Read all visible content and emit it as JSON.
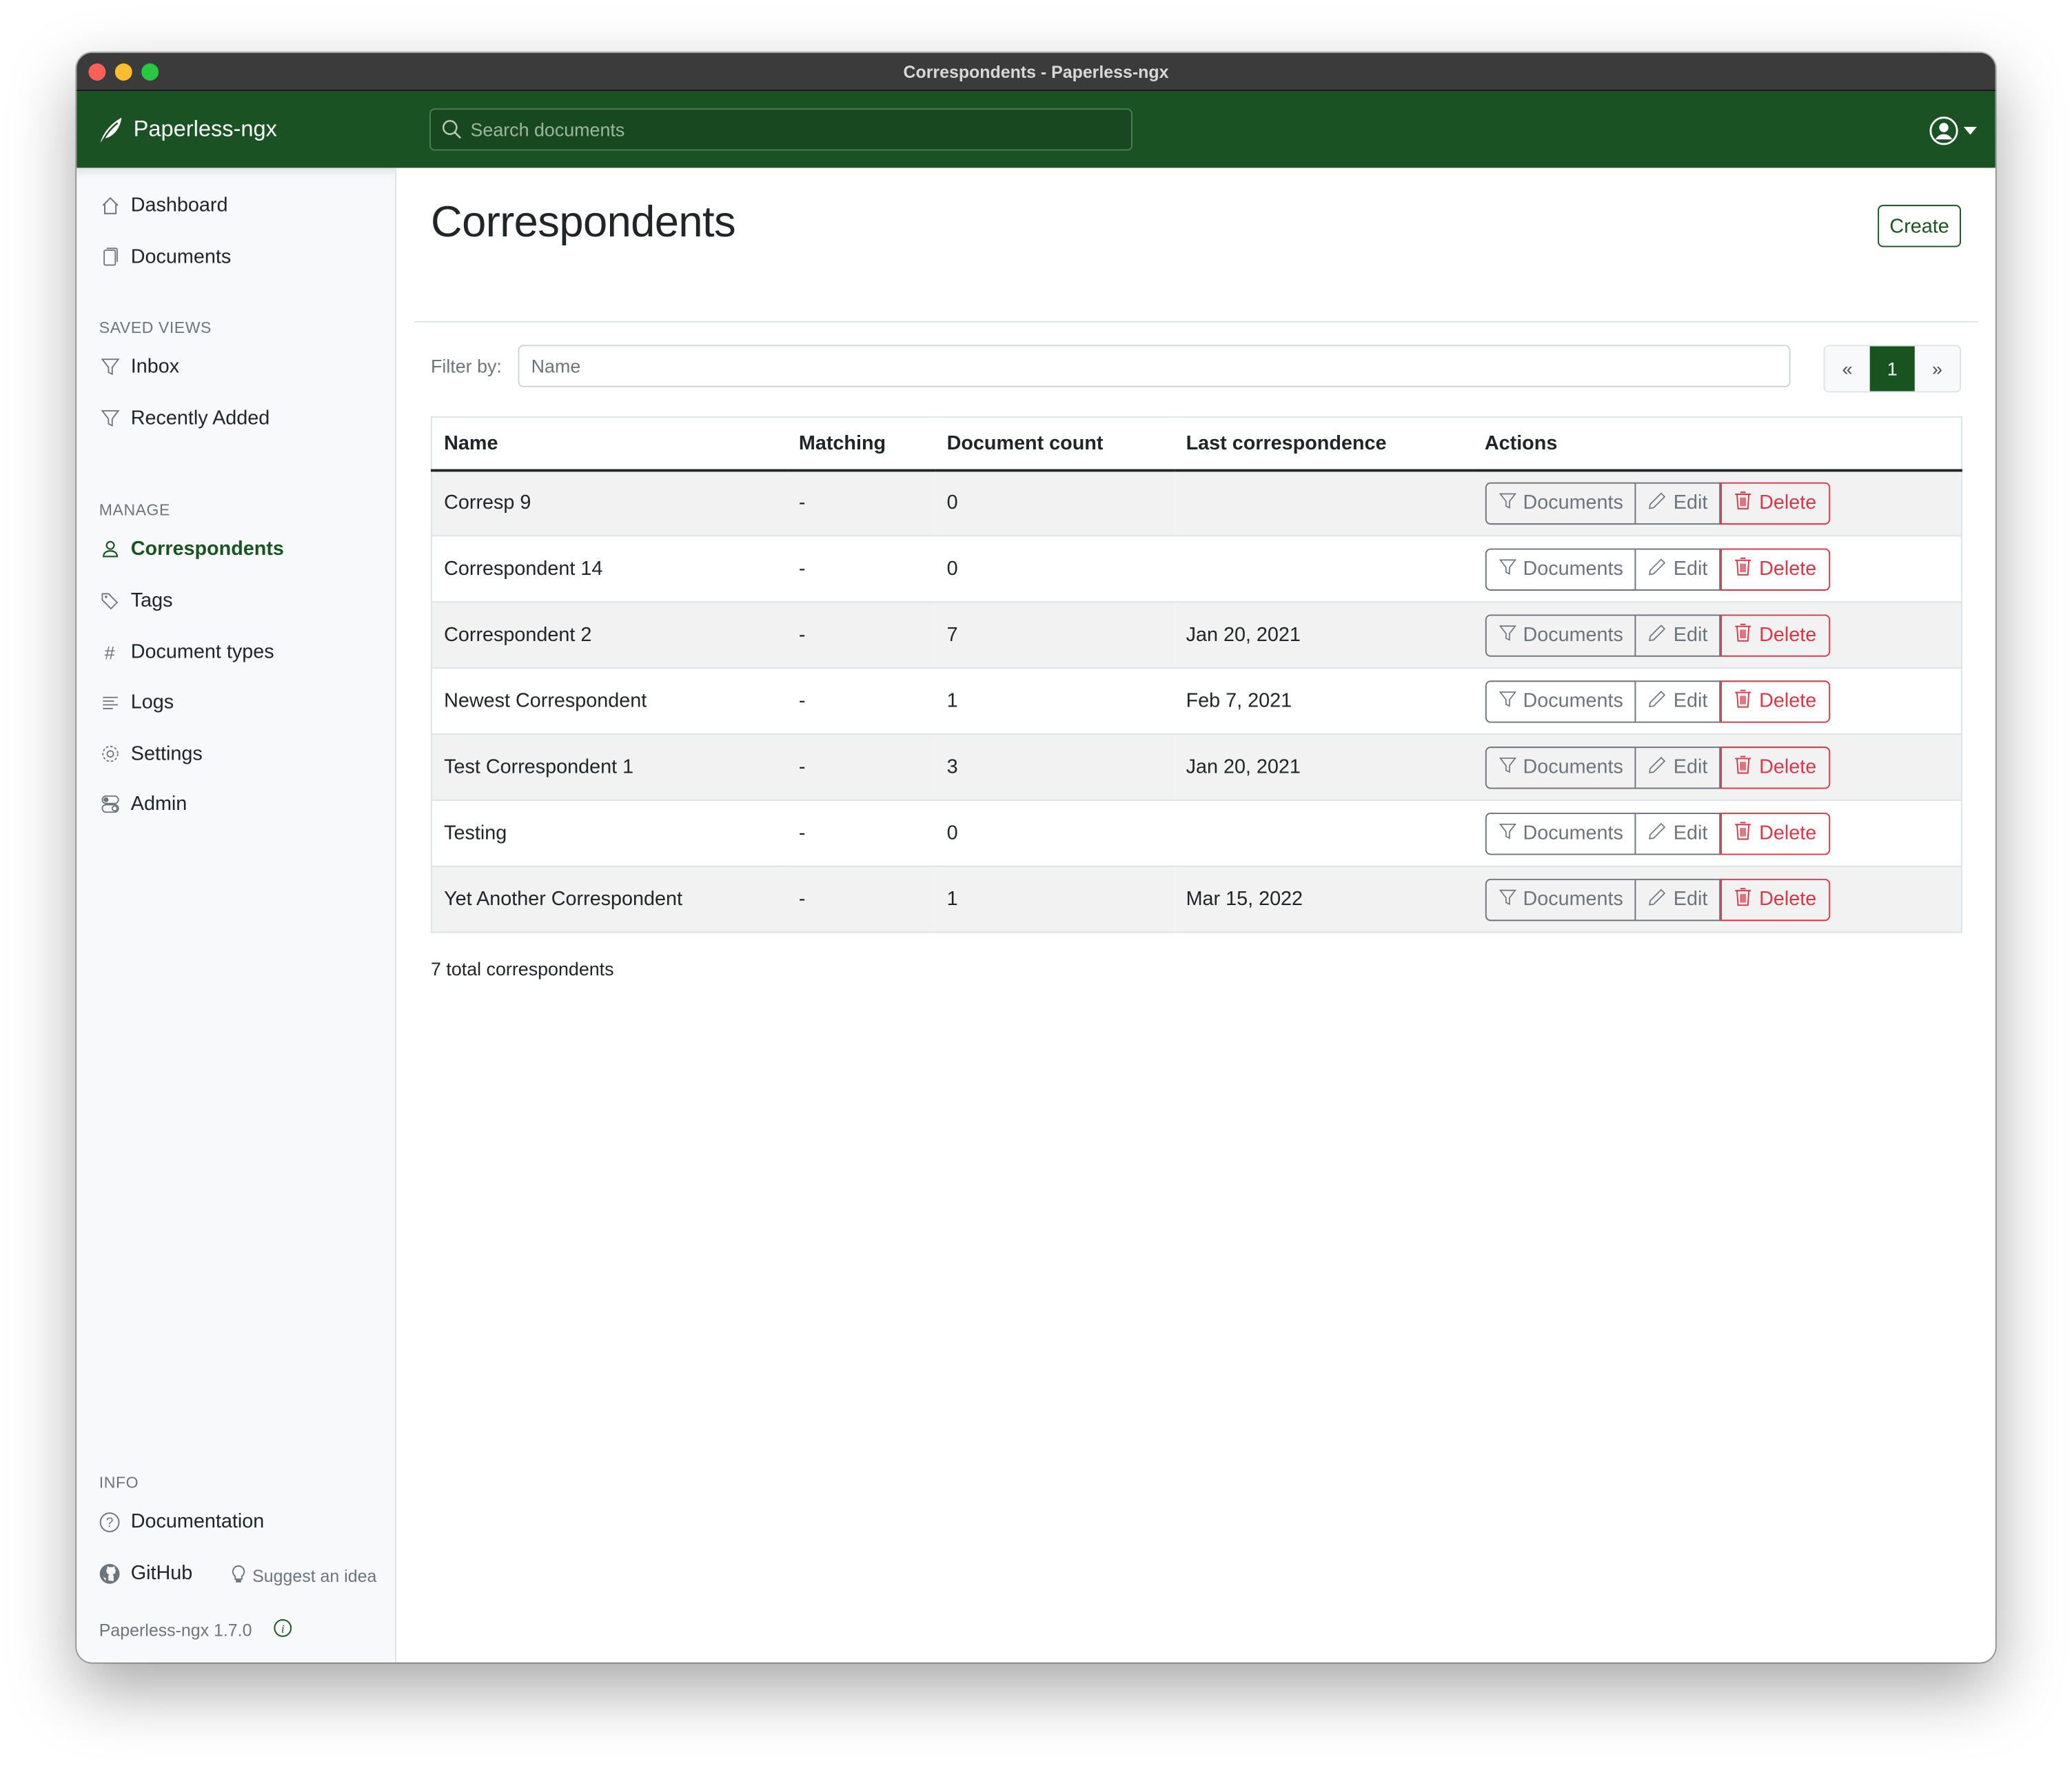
{
  "window": {
    "title": "Correspondents - Paperless-ngx"
  },
  "navbar": {
    "brand": "Paperless-ngx",
    "search_placeholder": "Search documents"
  },
  "sidebar": {
    "main": [
      {
        "label": "Dashboard",
        "icon": "house-icon"
      },
      {
        "label": "Documents",
        "icon": "files-icon"
      }
    ],
    "saved_views_heading": "SAVED VIEWS",
    "saved_views": [
      {
        "label": "Inbox",
        "icon": "funnel-icon"
      },
      {
        "label": "Recently Added",
        "icon": "funnel-icon"
      }
    ],
    "manage_heading": "MANAGE",
    "manage": [
      {
        "label": "Correspondents",
        "icon": "person-icon",
        "active": true
      },
      {
        "label": "Tags",
        "icon": "tags-icon"
      },
      {
        "label": "Document types",
        "icon": "hash-icon"
      },
      {
        "label": "Logs",
        "icon": "text-left-icon"
      },
      {
        "label": "Settings",
        "icon": "gear-icon"
      },
      {
        "label": "Admin",
        "icon": "toggles-icon"
      }
    ],
    "info_heading": "INFO",
    "documentation": "Documentation",
    "github": "GitHub",
    "suggest": "Suggest an idea",
    "version": "Paperless-ngx 1.7.0"
  },
  "page": {
    "title": "Correspondents",
    "create_label": "Create",
    "filter_label": "Filter by:",
    "filter_placeholder": "Name",
    "pagination": {
      "prev": "«",
      "current": "1",
      "next": "»"
    },
    "total": "7 total correspondents"
  },
  "table": {
    "columns": [
      "Name",
      "Matching",
      "Document count",
      "Last correspondence",
      "Actions"
    ],
    "actions": {
      "documents": "Documents",
      "edit": "Edit",
      "delete": "Delete"
    },
    "rows": [
      [
        "Corresp 9",
        "-",
        "0",
        ""
      ],
      [
        "Correspondent 14",
        "-",
        "0",
        ""
      ],
      [
        "Correspondent 2",
        "-",
        "7",
        "Jan 20, 2021"
      ],
      [
        "Newest Correspondent",
        "-",
        "1",
        "Feb 7, 2021"
      ],
      [
        "Test Correspondent 1",
        "-",
        "3",
        "Jan 20, 2021"
      ],
      [
        "Testing",
        "-",
        "0",
        ""
      ],
      [
        "Yet Another Correspondent",
        "-",
        "1",
        "Mar 15, 2022"
      ]
    ]
  },
  "colors": {
    "brand": "#17541f",
    "danger": "#dc3545",
    "secondary": "#6c757d"
  }
}
